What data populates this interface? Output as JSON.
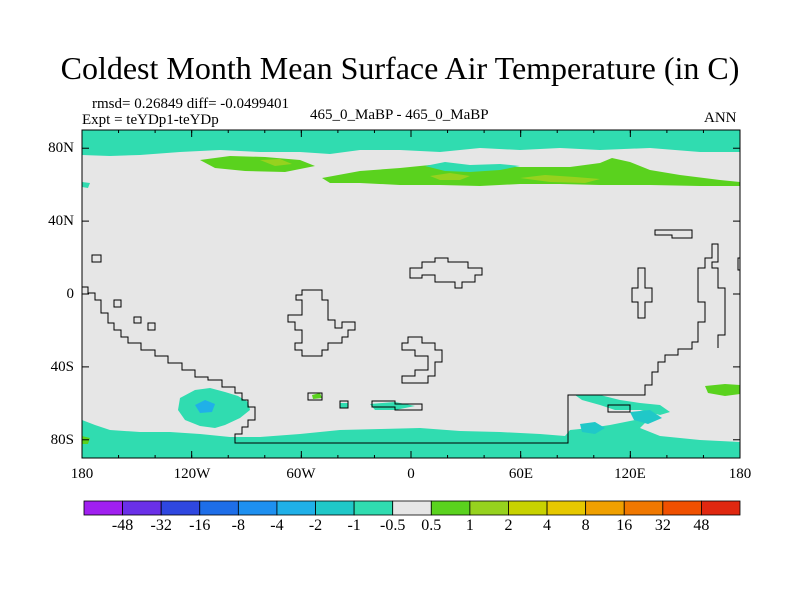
{
  "title": "Coldest Month Mean Surface Air Temperature (in C)",
  "stats_line": "rmsd= 0.26849 diff= -0.0499401",
  "expt_line": "Expt = teYDp1-teYDp",
  "case_line": "465_0_MaBP - 465_0_MaBP",
  "season": "ANN",
  "lat_labels": [
    "80N",
    "40N",
    "0",
    "40S",
    "80S"
  ],
  "lon_labels": [
    "180",
    "120W",
    "60W",
    "0",
    "60E",
    "120E",
    "180"
  ],
  "colorbar": {
    "labels": [
      "-48",
      "-32",
      "-16",
      "-8",
      "-4",
      "-2",
      "-1",
      "-0.5",
      "0.5",
      "1",
      "2",
      "4",
      "8",
      "16",
      "32",
      "48"
    ],
    "colors": [
      "#a020f0",
      "#6a30e8",
      "#2f47e0",
      "#1e6ee8",
      "#1e90f0",
      "#20b0e8",
      "#20c8c8",
      "#30dcb0",
      "#e6e6e6",
      "#5ad21e",
      "#96d21e",
      "#c8d200",
      "#e6c800",
      "#f0a000",
      "#f07800",
      "#f05000",
      "#e02810"
    ]
  },
  "map_colors": {
    "neutral": "#e6e6e6",
    "cyan": "#30dcb0",
    "green": "#5ad21e",
    "lime": "#96d21e",
    "teal": "#20c8c8",
    "blue": "#20b0e8"
  }
}
